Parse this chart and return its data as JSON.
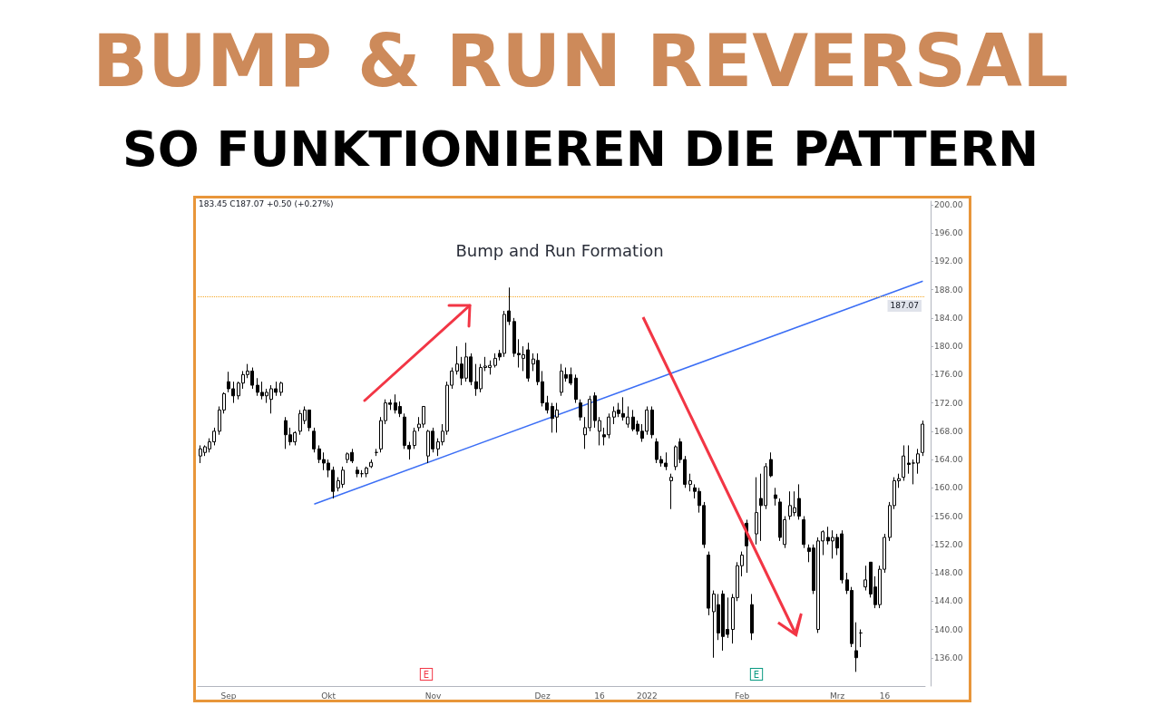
{
  "chart_data": {
    "type": "candlestick",
    "title": "BUMP & RUN REVERSAL",
    "subtitle": "SO FUNKTIONIEREN DIE PATTERN",
    "categories": [
      null,
      null,
      null,
      null,
      null,
      null,
      "Sep",
      null,
      null,
      null,
      null,
      null,
      null,
      null,
      null,
      null,
      null,
      null,
      null,
      null,
      null,
      null,
      null,
      null,
      null,
      null,
      null,
      "Okt",
      null,
      null,
      null,
      null,
      null,
      null,
      null,
      null,
      null,
      null,
      null,
      null,
      null,
      null,
      null,
      null,
      null,
      null,
      null,
      null,
      null,
      "Nov",
      null,
      null,
      null,
      null,
      null,
      null,
      null,
      null,
      null,
      null,
      null,
      null,
      null,
      null,
      null,
      null,
      null,
      null,
      null,
      null,
      null,
      null,
      "Dez",
      null,
      null,
      null,
      null,
      null,
      null,
      null,
      null,
      null,
      null,
      null,
      "16",
      null,
      null,
      null,
      null,
      null,
      null,
      null,
      null,
      null,
      "2022",
      null,
      null,
      null,
      null,
      null,
      null,
      null,
      null,
      null,
      null,
      null,
      null,
      null,
      null,
      null,
      null,
      null,
      null,
      null,
      "Feb",
      null,
      null,
      null,
      null,
      null,
      null,
      null,
      null,
      null,
      null,
      null,
      null,
      null,
      null,
      null,
      null,
      null,
      null,
      null,
      "Mrz",
      null,
      null,
      null,
      null,
      null,
      null,
      null,
      null,
      null,
      "16",
      null,
      null,
      null,
      null,
      null,
      null,
      null,
      null
    ],
    "ohlc": [
      [
        164.5,
        166,
        163.5,
        165.5
      ],
      [
        165,
        166,
        164.5,
        165.8
      ],
      [
        165.5,
        167,
        165,
        166.5
      ],
      [
        166.5,
        168.5,
        166,
        168
      ],
      [
        168,
        171.5,
        167.5,
        171
      ],
      [
        171,
        173.5,
        170.5,
        173.3
      ],
      [
        175,
        176.4,
        173.5,
        174
      ],
      [
        174,
        175,
        172,
        173
      ],
      [
        173,
        175,
        172.5,
        174.8
      ],
      [
        174.8,
        176.5,
        174,
        176
      ],
      [
        176,
        177.5,
        175.5,
        176.5
      ],
      [
        176.5,
        177,
        174,
        174.5
      ],
      [
        174.5,
        175.5,
        173,
        173.5
      ],
      [
        173.5,
        175,
        172.5,
        173
      ],
      [
        173,
        174,
        172,
        173.5
      ],
      [
        172.5,
        174.5,
        170.5,
        174
      ],
      [
        174,
        175,
        173,
        173.5
      ],
      [
        173.5,
        175,
        173,
        174.8
      ],
      [
        169.5,
        170,
        165.5,
        167.5
      ],
      [
        167.5,
        168.5,
        166,
        166.5
      ],
      [
        166.5,
        168,
        166,
        167.8
      ],
      [
        168,
        171,
        167.5,
        170.5
      ],
      [
        169.5,
        171.5,
        169,
        171
      ],
      [
        171,
        171,
        168,
        168.5
      ],
      [
        168,
        168.5,
        165,
        165.5
      ],
      [
        165.5,
        166,
        163.5,
        164
      ],
      [
        164,
        165,
        162.5,
        163.5
      ],
      [
        163.5,
        164,
        161.5,
        162.5
      ],
      [
        162.5,
        163,
        158.5,
        159.5
      ],
      [
        160,
        161.5,
        159.5,
        161
      ],
      [
        160.5,
        163,
        160,
        162.5
      ],
      [
        164,
        165,
        163.5,
        164.8
      ],
      [
        165,
        165.5,
        163.5,
        163.8
      ],
      [
        162.5,
        163,
        161.5,
        162
      ],
      [
        162,
        162.5,
        161.5,
        162
      ],
      [
        162,
        163,
        161.5,
        162.8
      ],
      [
        163,
        164,
        162.8,
        163.6
      ],
      [
        165,
        165.5,
        164.5,
        165
      ],
      [
        165.5,
        170,
        165,
        169.5
      ],
      [
        169.5,
        172.5,
        169,
        172
      ],
      [
        172,
        172.5,
        171,
        171.8
      ],
      [
        172,
        173.2,
        170.5,
        171
      ],
      [
        171.5,
        172.2,
        170,
        170.5
      ],
      [
        170,
        170.5,
        165.5,
        166
      ],
      [
        166,
        166.5,
        164,
        165.5
      ],
      [
        166,
        168.5,
        165.5,
        168
      ],
      [
        168.5,
        170,
        168,
        169
      ],
      [
        169,
        171.5,
        168.5,
        171.5
      ],
      [
        164.5,
        168.2,
        163.5,
        168
      ],
      [
        168,
        168.5,
        165,
        165.5
      ],
      [
        165.5,
        167,
        164.5,
        166.5
      ],
      [
        166.5,
        169,
        166,
        168
      ],
      [
        168,
        175,
        167.5,
        174.5
      ],
      [
        174.5,
        177,
        174,
        176.5
      ],
      [
        176.5,
        180,
        176,
        177.5
      ],
      [
        177.5,
        178.5,
        174.5,
        175.5
      ],
      [
        175.5,
        180.5,
        175,
        178.5
      ],
      [
        178.5,
        179,
        174.5,
        175
      ],
      [
        175,
        177.5,
        173,
        174
      ],
      [
        174,
        177.5,
        173.5,
        177
      ],
      [
        177,
        178.5,
        176.5,
        177.2
      ],
      [
        177,
        178,
        176,
        177.3
      ],
      [
        177.3,
        179,
        177,
        178.3
      ],
      [
        179,
        179.5,
        178,
        178.5
      ],
      [
        179,
        185,
        178.5,
        184.5
      ],
      [
        185,
        188.3,
        183,
        183.5
      ],
      [
        183.5,
        184,
        178.5,
        179
      ],
      [
        179,
        181,
        177,
        178.8
      ],
      [
        178.3,
        180,
        176.5,
        178.8
      ],
      [
        179.5,
        180.5,
        175,
        175.5
      ],
      [
        177.5,
        179,
        176.5,
        178.2
      ],
      [
        178,
        179,
        174.5,
        175
      ],
      [
        175,
        176.5,
        171.5,
        172
      ],
      [
        172,
        173,
        170.5,
        171
      ],
      [
        171.5,
        172,
        167.8,
        169.8
      ],
      [
        170,
        172,
        167.8,
        171
      ],
      [
        173.5,
        177.5,
        173,
        176.5
      ],
      [
        176,
        177,
        175,
        175.5
      ],
      [
        176,
        177,
        174.5,
        174.8
      ],
      [
        175.5,
        176,
        172,
        172.5
      ],
      [
        172,
        172.5,
        169.5,
        170
      ],
      [
        167.5,
        170,
        165.5,
        168.5
      ],
      [
        168.5,
        173,
        168,
        172.5
      ],
      [
        173,
        173.5,
        168.5,
        169.5
      ],
      [
        168,
        170,
        166,
        169.5
      ],
      [
        167.5,
        168.5,
        166,
        167.2
      ],
      [
        167.5,
        170.5,
        167,
        170
      ],
      [
        170,
        171.5,
        169,
        170.8
      ],
      [
        171,
        172,
        170,
        170.5
      ],
      [
        170.5,
        172.8,
        169.5,
        170
      ],
      [
        169,
        171.5,
        168.5,
        170
      ],
      [
        170,
        171,
        168,
        168.3
      ],
      [
        169,
        169.5,
        167.5,
        168
      ],
      [
        168,
        169,
        166.5,
        167
      ],
      [
        168,
        171.5,
        167.5,
        171
      ],
      [
        171,
        171.5,
        167,
        167.5
      ],
      [
        166.5,
        167,
        163.5,
        164
      ],
      [
        164,
        164.5,
        163,
        163.5
      ],
      [
        163.5,
        165,
        162.5,
        163
      ],
      [
        161,
        162,
        157,
        161.5
      ],
      [
        163,
        166,
        162.5,
        165.8
      ],
      [
        166.5,
        167,
        163.5,
        164
      ],
      [
        164,
        164.5,
        160,
        160.5
      ],
      [
        160.5,
        162,
        159.5,
        161
      ],
      [
        160,
        160.5,
        158.5,
        159.5
      ],
      [
        159.5,
        160,
        156.5,
        157.5
      ],
      [
        157.5,
        158,
        151.5,
        152
      ],
      [
        150.5,
        151,
        142,
        143
      ],
      [
        142.5,
        145.5,
        136,
        145
      ],
      [
        143.5,
        145,
        138.5,
        139.5
      ],
      [
        145,
        145.5,
        137,
        139
      ],
      [
        140,
        144.5,
        138.8,
        139.3
      ],
      [
        140,
        145,
        138,
        144.5
      ],
      [
        144.5,
        149.5,
        144,
        149
      ],
      [
        149,
        151,
        147.5,
        150.5
      ],
      [
        155,
        155.5,
        148,
        151.8
      ],
      [
        143.5,
        145,
        138.5,
        139.5
      ],
      [
        153.5,
        161.5,
        152,
        156.5
      ],
      [
        158.5,
        162,
        152.5,
        157.5
      ],
      [
        157.5,
        163.5,
        157,
        163
      ],
      [
        164,
        165,
        161.5,
        161.7
      ],
      [
        159,
        160,
        157.5,
        158.5
      ],
      [
        158,
        158.5,
        152.5,
        153
      ],
      [
        152,
        156,
        151.5,
        155.5
      ],
      [
        156,
        159.5,
        155.5,
        157.5
      ],
      [
        156.5,
        159.5,
        156,
        157.2
      ],
      [
        158.5,
        160.5,
        155.5,
        156
      ],
      [
        155.5,
        156,
        151.5,
        152
      ],
      [
        151.5,
        152,
        149.5,
        151
      ],
      [
        151.5,
        152,
        145,
        145.5
      ],
      [
        140,
        153,
        139.5,
        152.5
      ],
      [
        152.5,
        154,
        150.5,
        153.8
      ],
      [
        153,
        154.5,
        152,
        152.5
      ],
      [
        152.5,
        154,
        150,
        153
      ],
      [
        153,
        153.5,
        150.5,
        151.5
      ],
      [
        153.5,
        154,
        146.5,
        147
      ],
      [
        147,
        148,
        145,
        145.5
      ],
      [
        145.5,
        146,
        137.5,
        138
      ],
      [
        137,
        141,
        134,
        136
      ],
      [
        139.5,
        140,
        137.5,
        139.5
      ],
      [
        146,
        149,
        145.5,
        147
      ],
      [
        149.5,
        149.5,
        144.5,
        145
      ],
      [
        146,
        147.5,
        143,
        143.5
      ],
      [
        143.5,
        149,
        143,
        148.5
      ],
      [
        148.5,
        153.5,
        148,
        153
      ],
      [
        153,
        158,
        152.5,
        157.5
      ],
      [
        157.5,
        161.5,
        157,
        161
      ],
      [
        161,
        162,
        160,
        161.3
      ],
      [
        161.5,
        166,
        161,
        164.5
      ],
      [
        163.5,
        166,
        162,
        163.3
      ],
      [
        163.5,
        164,
        160.5,
        163.5
      ],
      [
        163.5,
        165.5,
        162,
        164.8
      ],
      [
        165,
        169.5,
        164.5,
        169
      ]
    ],
    "color": "#000000",
    "series": [
      {
        "type": "line",
        "color": "#3b6ef5",
        "values": [
          null,
          null,
          null,
          null,
          null,
          null,
          null,
          null,
          null,
          null,
          null,
          null,
          null,
          null,
          null,
          null,
          null,
          null,
          null,
          null,
          null,
          null,
          null,
          null,
          157.7,
          null,
          null,
          null,
          null,
          null,
          null,
          null,
          null,
          null,
          null,
          null,
          null,
          null,
          null,
          null,
          null,
          null,
          null,
          null,
          null,
          null,
          null,
          null,
          null,
          null,
          null,
          null,
          null,
          null,
          null,
          null,
          null,
          null,
          null,
          null,
          null,
          null,
          null,
          null,
          null,
          null,
          null,
          null,
          null,
          null,
          null,
          null,
          null,
          null,
          null,
          null,
          null,
          null,
          null,
          null,
          null,
          null,
          null,
          null,
          null,
          null,
          null,
          null,
          null,
          null,
          null,
          null,
          null,
          null,
          null,
          null,
          null,
          null,
          null,
          null,
          null,
          null,
          null,
          null,
          null,
          null,
          null,
          null,
          null,
          null,
          null,
          null,
          null,
          null,
          null,
          null,
          null,
          null,
          null,
          null,
          null,
          null,
          null,
          null,
          null,
          null,
          null,
          null,
          null,
          null,
          null,
          null,
          null,
          null,
          null,
          null,
          null,
          null,
          null,
          null,
          null,
          null,
          null,
          null,
          null,
          null,
          null,
          null,
          null,
          null,
          null,
          null,
          189.2
        ]
      }
    ],
    "ylim": [
      132,
      200.5
    ],
    "yticks": [
      {
        "value": 136,
        "label": "136.00"
      },
      {
        "value": 140,
        "label": "140.00"
      },
      {
        "value": 144,
        "label": "144.00"
      },
      {
        "value": 148,
        "label": "148.00"
      },
      {
        "value": 152,
        "label": "152.00"
      },
      {
        "value": 156,
        "label": "156.00"
      },
      {
        "value": 160,
        "label": "160.00"
      },
      {
        "value": 164,
        "label": "164.00"
      },
      {
        "value": 168,
        "label": "168.00"
      },
      {
        "value": 172,
        "label": "172.00"
      },
      {
        "value": 176,
        "label": "176.00"
      },
      {
        "value": 180,
        "label": "180.00"
      },
      {
        "value": 184,
        "label": "184.00"
      },
      {
        "value": 188,
        "label": "188.00"
      },
      {
        "value": 192,
        "label": "192.00"
      },
      {
        "value": 196,
        "label": "196.00"
      },
      {
        "value": 200,
        "label": "200.00"
      }
    ],
    "ref_lines": [
      {
        "axis": "y",
        "value": 187.07,
        "label": "187.07",
        "color": "#f5a623",
        "line_style": "dotted"
      }
    ],
    "annotations": [
      "Bump and Run Formation",
      "183.45 C187.07 +0.50 (+0.27%)",
      "E",
      "E"
    ],
    "grid": false
  }
}
